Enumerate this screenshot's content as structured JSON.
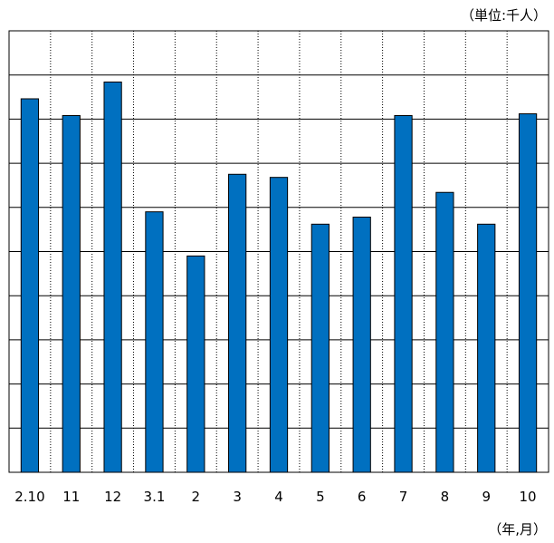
{
  "chart_data": {
    "type": "bar",
    "unit_label": "（単位:千人）",
    "xlabel": "（年,月）",
    "categories": [
      "2.10",
      "11",
      "12",
      "3.1",
      "2",
      "3",
      "4",
      "5",
      "6",
      "7",
      "8",
      "9",
      "10"
    ],
    "values": [
      84.6,
      80.8,
      88.4,
      59.0,
      49.0,
      67.5,
      66.8,
      56.2,
      57.8,
      80.8,
      63.4,
      56.2,
      81.2
    ],
    "ylim": [
      0,
      100
    ],
    "y_gridlines": 10,
    "grid": true,
    "vertical_grid_style": "dotted",
    "y_tick_labels_shown": false,
    "legend": "none",
    "bar_color": "#0070c0"
  }
}
